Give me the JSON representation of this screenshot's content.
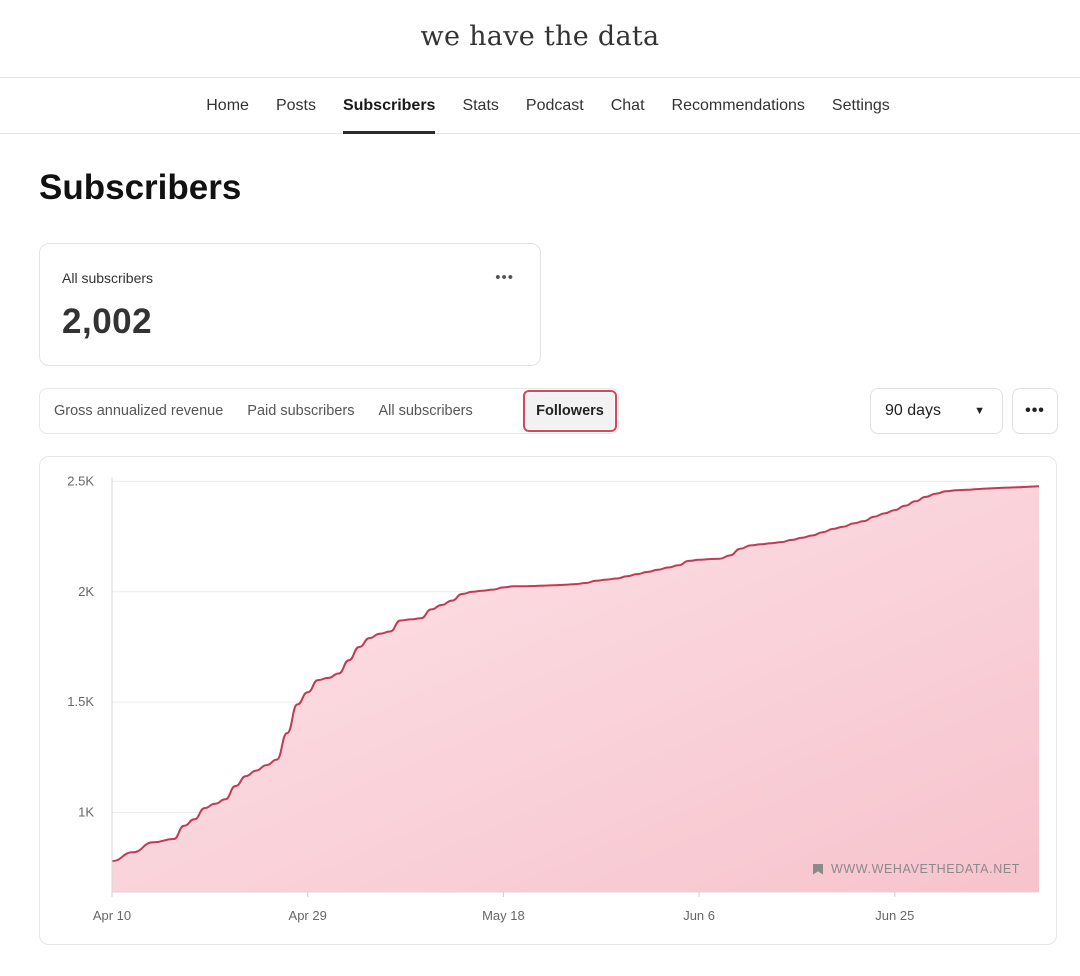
{
  "site": {
    "title": "we have the data"
  },
  "nav": {
    "items": [
      {
        "label": "Home"
      },
      {
        "label": "Posts"
      },
      {
        "label": "Subscribers",
        "active": true
      },
      {
        "label": "Stats"
      },
      {
        "label": "Podcast"
      },
      {
        "label": "Chat"
      },
      {
        "label": "Recommendations"
      },
      {
        "label": "Settings"
      }
    ]
  },
  "page": {
    "title": "Subscribers"
  },
  "summary_card": {
    "label": "All subscribers",
    "value": "2,002",
    "more_icon": "ellipsis-icon"
  },
  "tabs": {
    "items": [
      {
        "label": "Gross annualized revenue"
      },
      {
        "label": "Paid subscribers"
      },
      {
        "label": "All subscribers"
      },
      {
        "label": "Followers",
        "selected": true
      }
    ]
  },
  "range_select": {
    "value": "90 days",
    "caret_icon": "caret-down-icon"
  },
  "chart_more": {
    "icon": "ellipsis-icon"
  },
  "watermark": {
    "text": "WWW.WEHAVETHEDATA.NET",
    "icon": "bookmark-icon"
  },
  "colors": {
    "line": "#c23a55",
    "fill_top": "#f7c3cd",
    "fill_bottom": "#fde4e8",
    "accent": "#d6465f"
  },
  "chart_data": {
    "type": "area",
    "title": "",
    "xlabel": "",
    "ylabel": "",
    "x_ticks": [
      "Apr 10",
      "Apr 29",
      "May 18",
      "Jun 6",
      "Jun 25"
    ],
    "y_ticks": [
      "1K",
      "1.5K",
      "2K",
      "2.5K"
    ],
    "y_tick_values": [
      1000,
      1500,
      2000,
      2500
    ],
    "ylim": [
      640,
      2520
    ],
    "grid": true,
    "series": [
      {
        "x_day": [
          0,
          2,
          4,
          6,
          7,
          8,
          9,
          10,
          11,
          12,
          13,
          14,
          15,
          16,
          17,
          18,
          19,
          20,
          21,
          22,
          23,
          24,
          25,
          26,
          27,
          28,
          29,
          30,
          31,
          32,
          33,
          34,
          35,
          36,
          37,
          38,
          39,
          40,
          41,
          42,
          43,
          44,
          45,
          46,
          47,
          48,
          49,
          50,
          51,
          52,
          53,
          54,
          55,
          56,
          57,
          58,
          59,
          60,
          61,
          62,
          63,
          64,
          65,
          66,
          67,
          68,
          69,
          70,
          71,
          72,
          73,
          74,
          75,
          76,
          77,
          78,
          79,
          80,
          81,
          82,
          83,
          84,
          85,
          86,
          87,
          88,
          89,
          90
        ],
        "x_dates": [
          "Apr 10",
          "Apr 12",
          "Apr 14",
          "Apr 16",
          "Apr 17",
          "Apr 18",
          "Apr 19",
          "Apr 20",
          "Apr 21",
          "Apr 22",
          "Apr 23",
          "Apr 24",
          "Apr 25",
          "Apr 26",
          "Apr 27",
          "Apr 28",
          "Apr 29",
          "Apr 30",
          "May 1",
          "May 2",
          "May 3",
          "May 4",
          "May 5",
          "May 6",
          "May 7",
          "May 8",
          "May 9",
          "May 10",
          "May 11",
          "May 12",
          "May 13",
          "May 14",
          "May 15",
          "May 16",
          "May 17",
          "May 18",
          "May 19",
          "May 20",
          "May 21",
          "May 22",
          "May 23",
          "May 24",
          "May 25",
          "May 26",
          "May 27",
          "May 28",
          "May 29",
          "May 30",
          "May 31",
          "Jun 1",
          "Jun 2",
          "Jun 3",
          "Jun 4",
          "Jun 5",
          "Jun 6",
          "Jun 7",
          "Jun 8",
          "Jun 9",
          "Jun 10",
          "Jun 11",
          "Jun 12",
          "Jun 13",
          "Jun 14",
          "Jun 15",
          "Jun 16",
          "Jun 17",
          "Jun 18",
          "Jun 19",
          "Jun 20",
          "Jun 21",
          "Jun 22",
          "Jun 23",
          "Jun 24",
          "Jun 25",
          "Jun 26",
          "Jun 27",
          "Jun 28",
          "Jun 29",
          "Jun 30",
          "Jul 1",
          "Jul 2",
          "Jul 3",
          "Jul 4",
          "Jul 5",
          "Jul 6",
          "Jul 7",
          "Jul 8",
          "Jul 9"
        ],
        "values": [
          780,
          820,
          865,
          880,
          940,
          970,
          1020,
          1040,
          1060,
          1120,
          1165,
          1190,
          1215,
          1240,
          1360,
          1490,
          1545,
          1600,
          1610,
          1630,
          1690,
          1750,
          1790,
          1810,
          1820,
          1870,
          1875,
          1880,
          1920,
          1940,
          1960,
          1990,
          2000,
          2005,
          2010,
          2020,
          2025,
          2025,
          2026,
          2028,
          2030,
          2032,
          2035,
          2040,
          2050,
          2055,
          2060,
          2070,
          2080,
          2090,
          2100,
          2110,
          2120,
          2140,
          2145,
          2148,
          2150,
          2165,
          2195,
          2210,
          2215,
          2220,
          2225,
          2235,
          2245,
          2255,
          2270,
          2285,
          2295,
          2310,
          2320,
          2340,
          2355,
          2370,
          2390,
          2410,
          2430,
          2445,
          2455,
          2460,
          2462,
          2465,
          2468,
          2470,
          2472,
          2474,
          2476,
          2478
        ]
      }
    ]
  }
}
